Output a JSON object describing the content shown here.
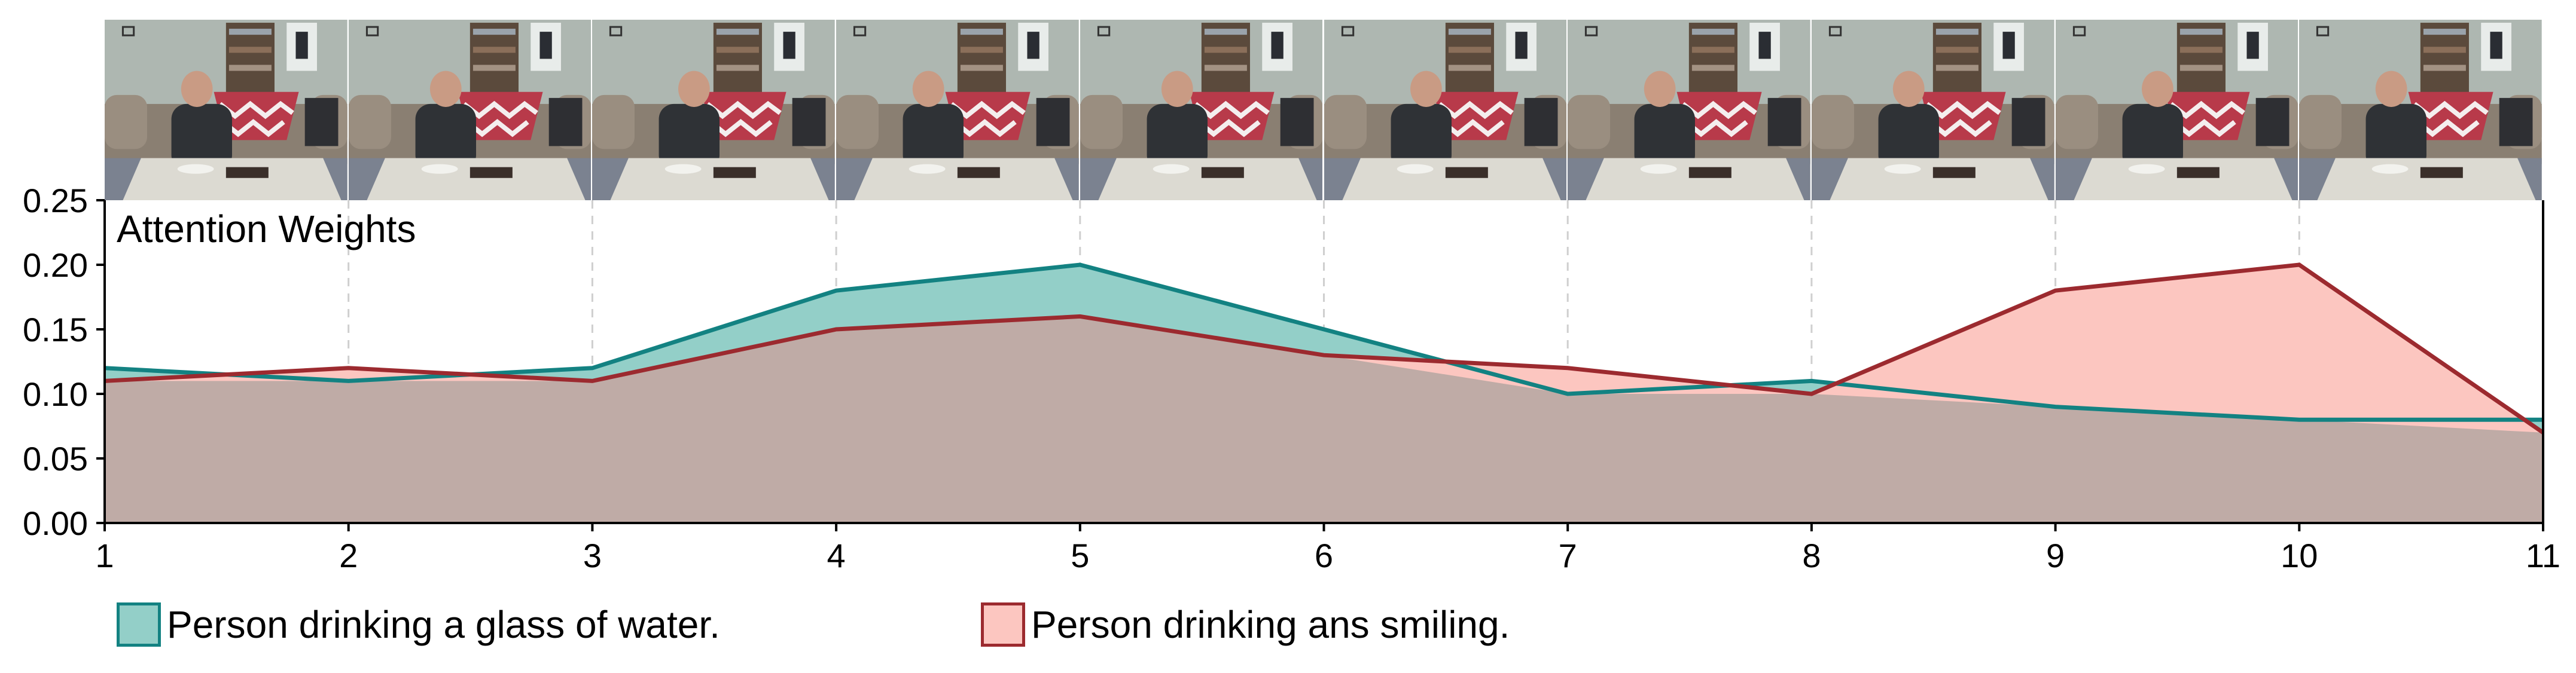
{
  "chart_data": {
    "type": "area",
    "title": "Attention Weights",
    "xlabel": "",
    "ylabel": "",
    "x": [
      1,
      2,
      3,
      4,
      5,
      6,
      7,
      8,
      9,
      10,
      11
    ],
    "xlim": [
      1,
      11
    ],
    "ylim": [
      0,
      0.25
    ],
    "y_ticks": [
      "0.00",
      "0.05",
      "0.10",
      "0.15",
      "0.20",
      "0.25"
    ],
    "x_ticks": [
      "1",
      "2",
      "3",
      "4",
      "5",
      "6",
      "7",
      "8",
      "9",
      "10",
      "11"
    ],
    "grid": "vertical dashed",
    "legend_position": "bottom",
    "series": [
      {
        "name": "Person drinking a glass of water.",
        "values": [
          0.12,
          0.11,
          0.12,
          0.18,
          0.2,
          0.15,
          0.1,
          0.11,
          0.09,
          0.08,
          0.08
        ],
        "line_color": "#138282",
        "fill_color": "#93cfc8"
      },
      {
        "name": "Person drinking ans smiling.",
        "values": [
          0.11,
          0.12,
          0.11,
          0.15,
          0.16,
          0.13,
          0.12,
          0.1,
          0.18,
          0.2,
          0.07
        ],
        "line_color": "#9c2a2f",
        "fill_color": "#fcc6c0"
      }
    ],
    "overlap_color": "#bfaba6"
  },
  "video_frames": {
    "count": 10,
    "wall_color": "#aeb7b1",
    "sofa_color": "#8a7f72",
    "blanket_color": "#b83a4a",
    "table_color": "#dcdad2",
    "floor_color": "#7b8290",
    "shirt_color": "#2f3236",
    "skin_color": "#c99b84"
  }
}
